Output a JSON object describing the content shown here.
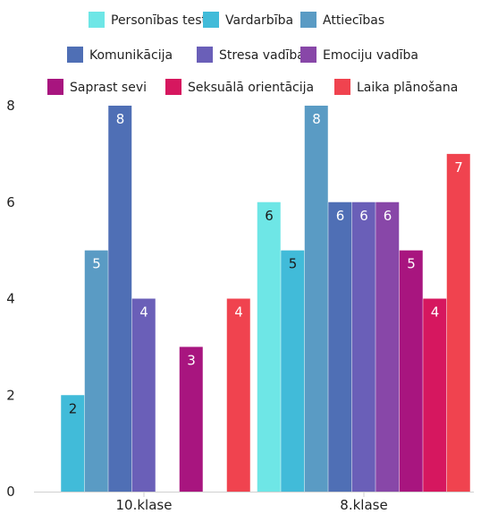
{
  "chart_data": {
    "type": "bar",
    "categories": [
      "10.klase",
      "8.klase"
    ],
    "ylim": [
      0,
      8
    ],
    "yticks": [
      0,
      2,
      4,
      6,
      8
    ],
    "grid": false,
    "legend_position": "top",
    "series": [
      {
        "name": "Personības testi",
        "color": "#6ee6e6",
        "values": [
          0,
          6
        ]
      },
      {
        "name": "Vardarbība",
        "color": "#41bbd9",
        "values": [
          2,
          5
        ]
      },
      {
        "name": "Attiecības",
        "color": "#5a9bc4",
        "values": [
          5,
          8
        ]
      },
      {
        "name": "Komunikācija",
        "color": "#4f6fb5",
        "values": [
          8,
          6
        ]
      },
      {
        "name": "Stresa vadība",
        "color": "#6a5fb8",
        "values": [
          4,
          6
        ]
      },
      {
        "name": "Emociju vadība",
        "color": "#8847a8",
        "values": [
          0,
          6
        ]
      },
      {
        "name": "Saprast sevi",
        "color": "#a8157f",
        "values": [
          3,
          5
        ]
      },
      {
        "name": "Seksuālā orientācija",
        "color": "#d6175f",
        "values": [
          0,
          4
        ]
      },
      {
        "name": "Laika plānošana",
        "color": "#f0434f",
        "values": [
          4,
          7
        ]
      }
    ]
  }
}
